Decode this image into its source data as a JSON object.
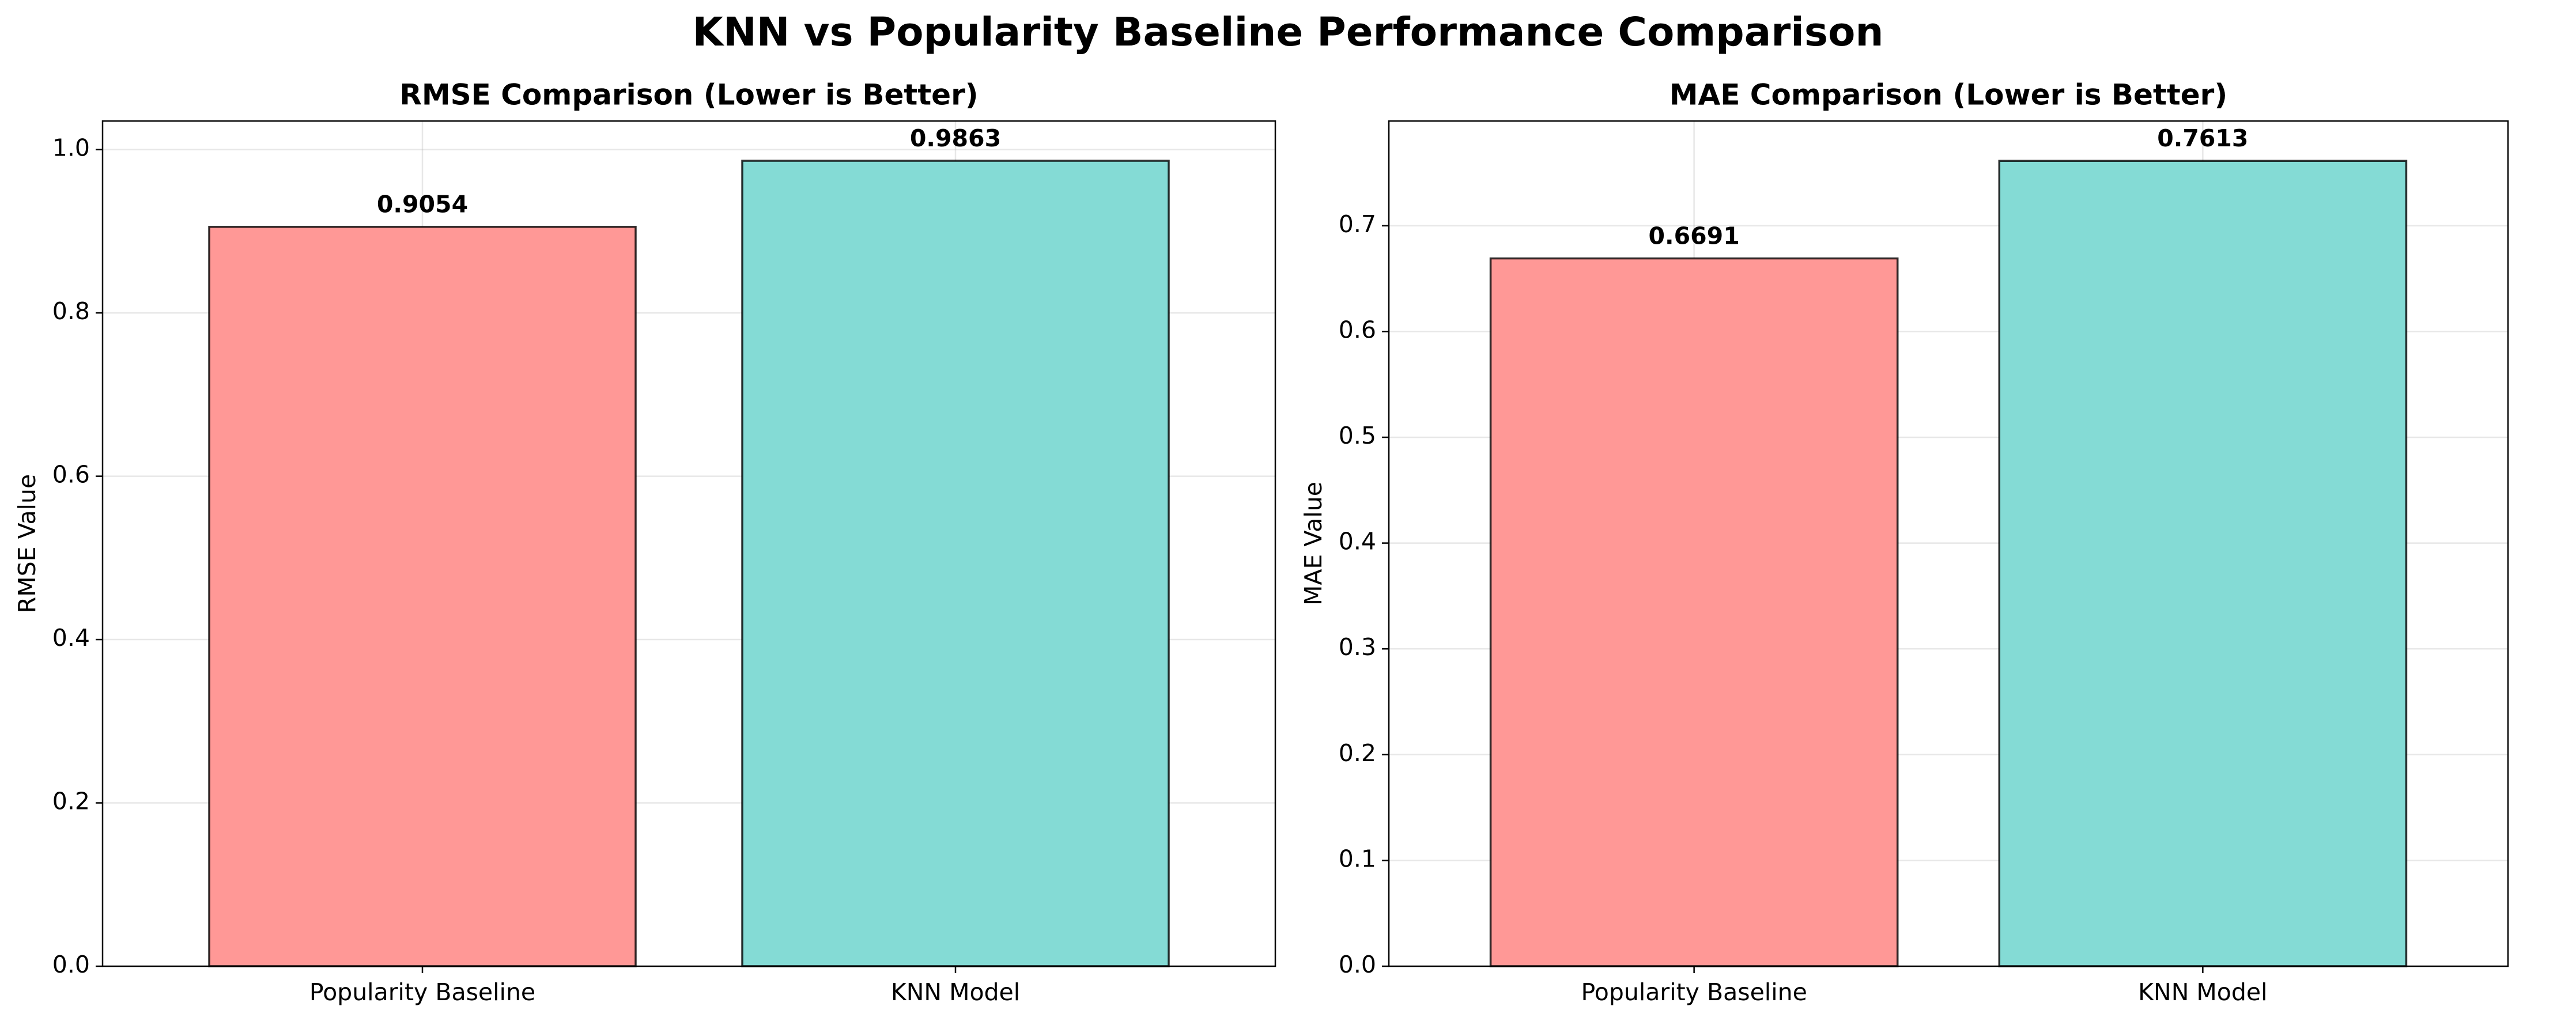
{
  "figure": {
    "title": "KNN vs Popularity Baseline Performance Comparison"
  },
  "chart_data": [
    {
      "type": "bar",
      "title": "RMSE Comparison (Lower is Better)",
      "xlabel": "",
      "ylabel": "RMSE Value",
      "categories": [
        "Popularity Baseline",
        "KNN Model"
      ],
      "values": [
        0.9054,
        0.9863
      ],
      "value_labels": [
        "0.9054",
        "0.9863"
      ],
      "colors": [
        "#ff9896",
        "#84dbd5"
      ],
      "edge_color": "#000000",
      "ylim": [
        0,
        1.035
      ],
      "yticks": [
        0.0,
        0.2,
        0.4,
        0.6,
        0.8,
        1.0
      ],
      "ytick_labels": [
        "0.0",
        "0.2",
        "0.4",
        "0.6",
        "0.8",
        "1.0"
      ],
      "grid": true,
      "legend": "none"
    },
    {
      "type": "bar",
      "title": "MAE Comparison (Lower is Better)",
      "xlabel": "",
      "ylabel": "MAE Value",
      "categories": [
        "Popularity Baseline",
        "KNN Model"
      ],
      "values": [
        0.6691,
        0.7613
      ],
      "value_labels": [
        "0.6691",
        "0.7613"
      ],
      "colors": [
        "#ff9896",
        "#84dbd5"
      ],
      "edge_color": "#000000",
      "ylim": [
        0,
        0.799
      ],
      "yticks": [
        0.0,
        0.1,
        0.2,
        0.3,
        0.4,
        0.5,
        0.6,
        0.7
      ],
      "ytick_labels": [
        "0.0",
        "0.1",
        "0.2",
        "0.3",
        "0.4",
        "0.5",
        "0.6",
        "0.7"
      ],
      "grid": true,
      "legend": "none"
    }
  ]
}
